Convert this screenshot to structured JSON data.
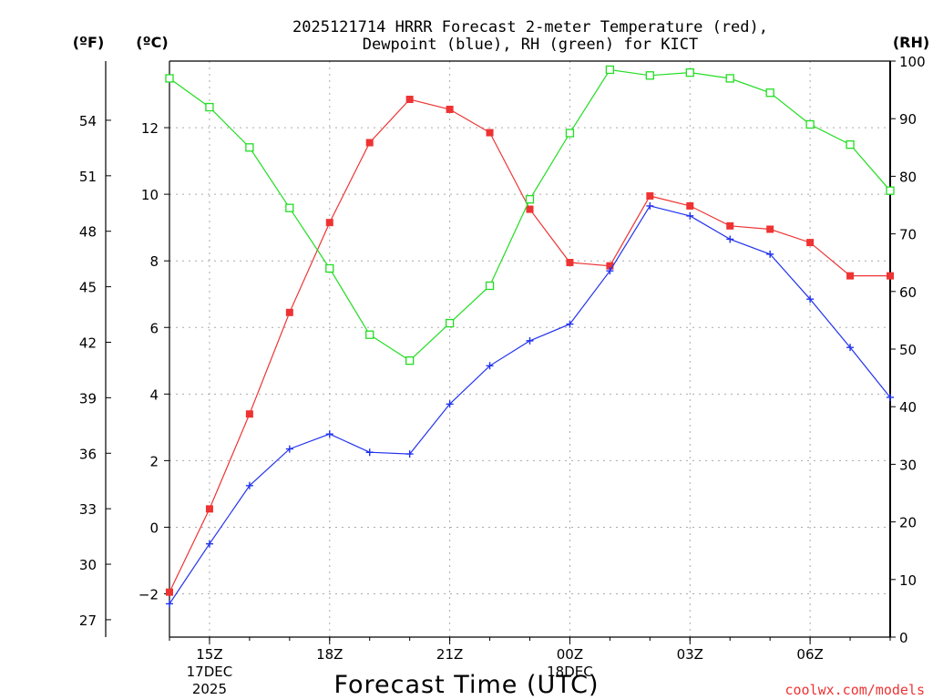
{
  "chart_data": {
    "type": "line",
    "title_lines": [
      "2025121714 HRRR Forecast 2-meter Temperature (red),",
      "Dewpoint (blue), RH (green) for KICT"
    ],
    "unit_labels": {
      "fahrenheit": "(ºF)",
      "celsius": "(ºC)",
      "rh": "(RH)"
    },
    "xlabel": "Forecast Time (UTC)",
    "credit": "coolwx.com/models",
    "x_hours": [
      14,
      15,
      16,
      17,
      18,
      19,
      20,
      21,
      22,
      23,
      24,
      25,
      26,
      27,
      28,
      29,
      30,
      31,
      32
    ],
    "xlim": [
      14,
      32
    ],
    "x_ticks": [
      {
        "hour": 15,
        "lines": [
          "15Z",
          "17DEC",
          "2025"
        ]
      },
      {
        "hour": 18,
        "lines": [
          "18Z"
        ]
      },
      {
        "hour": 21,
        "lines": [
          "21Z"
        ]
      },
      {
        "hour": 24,
        "lines": [
          "00Z",
          "18DEC"
        ]
      },
      {
        "hour": 27,
        "lines": [
          "03Z"
        ]
      },
      {
        "hour": 30,
        "lines": [
          "06Z"
        ]
      }
    ],
    "celsius_axis": {
      "ylim": [
        -3.3,
        14.0
      ],
      "ticks": [
        -2,
        0,
        2,
        4,
        6,
        8,
        10,
        12
      ]
    },
    "fahrenheit_axis": {
      "ticks": [
        27,
        30,
        33,
        36,
        39,
        42,
        45,
        48,
        51,
        54
      ]
    },
    "rh_axis": {
      "ylim": [
        0,
        100
      ],
      "ticks": [
        0,
        10,
        20,
        30,
        40,
        50,
        60,
        70,
        80,
        90,
        100
      ]
    },
    "grid": true,
    "series": [
      {
        "name": "Temperature",
        "axis": "celsius",
        "color": "#ee3333",
        "marker": "filled-square",
        "values": [
          -1.95,
          0.55,
          3.4,
          6.45,
          9.15,
          11.55,
          12.85,
          12.55,
          11.85,
          9.55,
          7.95,
          7.85,
          9.95,
          9.65,
          9.05,
          8.95,
          8.55,
          7.55,
          7.55
        ]
      },
      {
        "name": "Dewpoint",
        "axis": "celsius",
        "color": "#2233ee",
        "marker": "plus",
        "values": [
          -2.3,
          -0.5,
          1.25,
          2.35,
          2.8,
          2.25,
          2.2,
          3.7,
          4.85,
          5.6,
          6.1,
          7.7,
          9.65,
          9.35,
          8.65,
          8.2,
          6.85,
          5.4,
          3.9
        ]
      },
      {
        "name": "RH",
        "axis": "rh",
        "color": "#22dd22",
        "marker": "open-square",
        "values": [
          97,
          92,
          85,
          74.5,
          64,
          52.5,
          48,
          54.5,
          61,
          76,
          87.5,
          98.5,
          97.5,
          98,
          97,
          94.5,
          89,
          85.5,
          77.5
        ]
      }
    ]
  }
}
